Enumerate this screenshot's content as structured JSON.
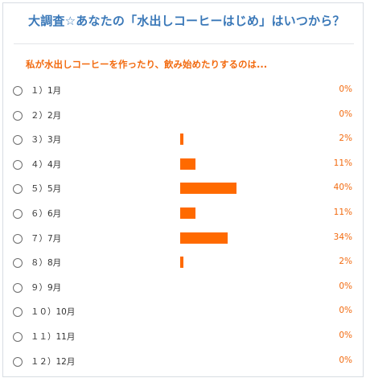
{
  "poll": {
    "title": "大調査☆あなたの「水出しコーヒーはじめ」はいつから？",
    "question": "私が水出しコーヒーを作ったり、飲み始めたりするのは...",
    "accent_color": "#ff6a00",
    "title_color": "#3a78b8",
    "options": [
      {
        "label": "１）1月",
        "percent_text": "0%",
        "percent": 0
      },
      {
        "label": "２）2月",
        "percent_text": "0%",
        "percent": 0
      },
      {
        "label": "３）3月",
        "percent_text": "2%",
        "percent": 2
      },
      {
        "label": "４）4月",
        "percent_text": "11%",
        "percent": 11
      },
      {
        "label": "５）5月",
        "percent_text": "40%",
        "percent": 40
      },
      {
        "label": "６）6月",
        "percent_text": "11%",
        "percent": 11
      },
      {
        "label": "７）7月",
        "percent_text": "34%",
        "percent": 34
      },
      {
        "label": "８）8月",
        "percent_text": "2%",
        "percent": 2
      },
      {
        "label": "９）9月",
        "percent_text": "0%",
        "percent": 0
      },
      {
        "label": "１０）10月",
        "percent_text": "0%",
        "percent": 0
      },
      {
        "label": "１１）11月",
        "percent_text": "0%",
        "percent": 0
      },
      {
        "label": "１２）12月",
        "percent_text": "0%",
        "percent": 0
      }
    ]
  }
}
